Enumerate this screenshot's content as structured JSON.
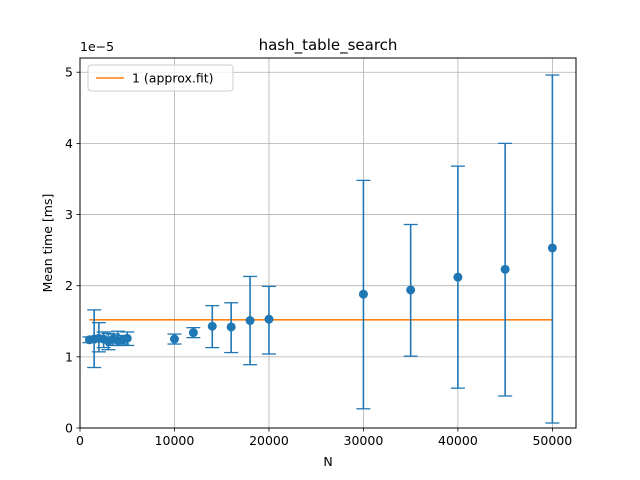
{
  "chart_data": {
    "type": "scatter",
    "title": "hash_table_search",
    "xlabel": "N",
    "ylabel": "Mean time [ms]",
    "y_multiplier_label": "1e−5",
    "xlim": [
      0,
      52500
    ],
    "ylim": [
      0,
      5.2
    ],
    "x_ticks": [
      0,
      10000,
      20000,
      30000,
      40000,
      50000
    ],
    "x_tick_labels": [
      "0",
      "10000",
      "20000",
      "30000",
      "40000",
      "50000"
    ],
    "y_ticks": [
      0,
      1,
      2,
      3,
      4,
      5
    ],
    "y_tick_labels": [
      "0",
      "1",
      "2",
      "3",
      "4",
      "5"
    ],
    "grid": true,
    "legend_position": "top-left",
    "colors": {
      "points": "#1f77b4",
      "fit": "#ff7f0e",
      "grid": "#b0b0b0"
    },
    "series": [
      {
        "kind": "errorbar",
        "color": "#1f77b4",
        "points": [
          {
            "x": 1000,
            "y": 1.24,
            "lo": 1.2,
            "hi": 1.28
          },
          {
            "x": 1500,
            "y": 1.25,
            "lo": 0.85,
            "hi": 1.66
          },
          {
            "x": 2000,
            "y": 1.26,
            "lo": 1.07,
            "hi": 1.48
          },
          {
            "x": 2500,
            "y": 1.25,
            "lo": 1.13,
            "hi": 1.35
          },
          {
            "x": 3000,
            "y": 1.22,
            "lo": 1.1,
            "hi": 1.33
          },
          {
            "x": 3500,
            "y": 1.25,
            "lo": 1.16,
            "hi": 1.32
          },
          {
            "x": 4000,
            "y": 1.23,
            "lo": 1.16,
            "hi": 1.36
          },
          {
            "x": 4500,
            "y": 1.24,
            "lo": 1.18,
            "hi": 1.3
          },
          {
            "x": 5000,
            "y": 1.26,
            "lo": 1.16,
            "hi": 1.35
          },
          {
            "x": 10000,
            "y": 1.25,
            "lo": 1.18,
            "hi": 1.32
          },
          {
            "x": 12000,
            "y": 1.34,
            "lo": 1.27,
            "hi": 1.41
          },
          {
            "x": 14000,
            "y": 1.43,
            "lo": 1.13,
            "hi": 1.72
          },
          {
            "x": 16000,
            "y": 1.42,
            "lo": 1.06,
            "hi": 1.76
          },
          {
            "x": 18000,
            "y": 1.51,
            "lo": 0.89,
            "hi": 2.13
          },
          {
            "x": 20000,
            "y": 1.53,
            "lo": 1.04,
            "hi": 1.99
          },
          {
            "x": 30000,
            "y": 1.88,
            "lo": 0.27,
            "hi": 3.48
          },
          {
            "x": 35000,
            "y": 1.94,
            "lo": 1.01,
            "hi": 2.86
          },
          {
            "x": 40000,
            "y": 2.12,
            "lo": 0.56,
            "hi": 3.68
          },
          {
            "x": 45000,
            "y": 2.23,
            "lo": 0.45,
            "hi": 4.0
          },
          {
            "x": 50000,
            "y": 2.53,
            "lo": 0.07,
            "hi": 4.96
          }
        ]
      },
      {
        "kind": "line",
        "name": "1 (approx.fit)",
        "color": "#ff7f0e",
        "x": [
          1000,
          50000
        ],
        "y": [
          1.52,
          1.52
        ]
      }
    ]
  }
}
